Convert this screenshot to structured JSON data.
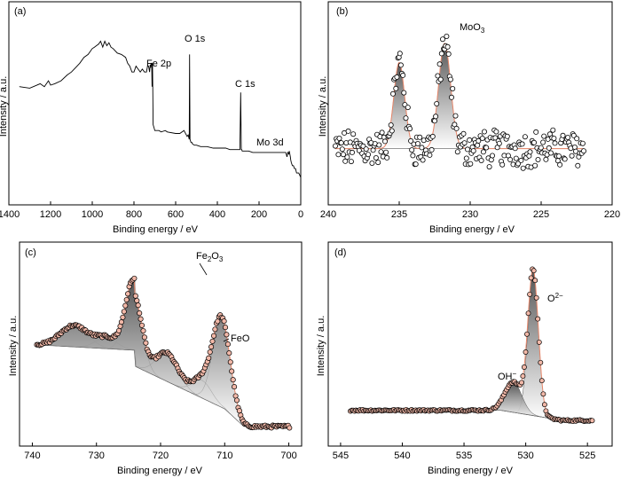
{
  "chart_data": [
    {
      "type": "line",
      "panel": "(a)",
      "xlabel": "Binding energy / eV",
      "ylabel": "Intensity / a.u.",
      "xlim": [
        1400,
        0
      ],
      "ylim": [
        0,
        100
      ],
      "xticks": [
        1400,
        1200,
        1000,
        800,
        600,
        400,
        200,
        0
      ],
      "x": [
        1350,
        1300,
        1250,
        1230,
        1210,
        1200,
        1180,
        1150,
        1120,
        1100,
        1080,
        1060,
        1040,
        1020,
        1000,
        990,
        980,
        970,
        960,
        950,
        940,
        930,
        920,
        910,
        900,
        880,
        860,
        840,
        830,
        820,
        810,
        800,
        790,
        780,
        770,
        760,
        750,
        740,
        735,
        730,
        725,
        722,
        720,
        718,
        715,
        713,
        711,
        710,
        708,
        706,
        704,
        700,
        690,
        680,
        670,
        650,
        640,
        600,
        580,
        560,
        545,
        540,
        535,
        533,
        531,
        529,
        527,
        525,
        523,
        520,
        510,
        500,
        480,
        460,
        450,
        420,
        400,
        380,
        360,
        340,
        320,
        300,
        292,
        288,
        285,
        283,
        281,
        279,
        275,
        270,
        250,
        230,
        200,
        180,
        160,
        150,
        140,
        120,
        100,
        95,
        80,
        75,
        72,
        66,
        62,
        58,
        55,
        50,
        48,
        45,
        40,
        35,
        30,
        25,
        20,
        10,
        0
      ],
      "y": [
        62,
        61,
        64,
        62,
        66,
        63,
        64,
        66,
        70,
        72,
        75,
        78,
        82,
        84,
        88,
        89,
        90,
        91,
        93,
        89,
        93,
        90,
        92,
        89,
        88,
        85,
        84,
        82,
        78,
        76,
        72,
        72,
        76,
        74,
        72,
        74,
        72,
        72,
        76,
        76,
        72,
        77,
        75,
        78,
        78,
        62,
        78,
        62,
        36,
        35,
        34,
        32,
        32,
        32,
        31,
        32,
        31,
        30,
        30,
        32,
        28,
        29,
        26,
        84,
        26,
        25,
        24,
        24,
        24,
        23,
        22,
        22,
        21,
        21,
        21,
        20,
        20,
        20,
        20,
        19,
        19,
        19,
        19,
        58,
        19,
        19,
        18,
        18,
        18,
        18,
        18,
        17,
        17,
        17,
        17,
        17,
        17,
        17,
        17,
        17,
        17,
        17,
        17,
        14,
        17,
        16,
        18,
        14,
        12,
        10,
        8,
        8,
        6,
        6,
        3,
        3,
        0
      ],
      "annotations": [
        "Fe 2p",
        "O 1s",
        "C 1s",
        "Mo 3d"
      ]
    },
    {
      "type": "scatter",
      "panel": "(b)",
      "xlabel": "Binding energy / eV",
      "ylabel": "Intensity / a.u.",
      "xlim": [
        240,
        220
      ],
      "ylim": [
        0,
        100
      ],
      "xticks": [
        240,
        235,
        230,
        225,
        220
      ],
      "peaks": [
        {
          "center": 235.0,
          "height": 54,
          "fwhm": 0.9
        },
        {
          "center": 231.8,
          "height": 66,
          "fwhm": 1.0
        }
      ],
      "baseline": 18,
      "annotations": [
        "MoO3"
      ]
    },
    {
      "type": "scatter",
      "panel": "(c)",
      "xlabel": "Binding energy / eV",
      "ylabel": "Intensity / a.u.",
      "xlim": [
        742,
        698
      ],
      "ylim": [
        0,
        100
      ],
      "xticks": [
        740,
        730,
        720,
        710,
        700
      ],
      "annotations": [
        "Fe2O3",
        "FeO"
      ]
    },
    {
      "type": "scatter",
      "panel": "(d)",
      "xlabel": "Binding energy / eV",
      "ylabel": "Intensity / a.u.",
      "xlim": [
        546,
        523
      ],
      "ylim": [
        0,
        100
      ],
      "xticks": [
        545,
        540,
        535,
        530,
        525
      ],
      "peaks": [
        {
          "center": 529.4,
          "height": 86,
          "fwhm": 1.0
        },
        {
          "center": 531.0,
          "height": 18,
          "fwhm": 1.6
        }
      ],
      "annotations": [
        "OH−",
        "O2−"
      ]
    }
  ],
  "labels": {
    "a": {
      "panel": "(a)",
      "xlabel": "Binding energy / eV",
      "ylabel": "Intensity / a.u.",
      "fe2p": "Fe 2p",
      "o1s": "O 1s",
      "c1s": "C 1s",
      "mo3d": "Mo 3d"
    },
    "b": {
      "panel": "(b)",
      "xlabel": "Binding energy / eV",
      "ylabel": "Intensity / a.u.",
      "moo3_main": "MoO",
      "moo3_sub": "3"
    },
    "c": {
      "panel": "(c)",
      "xlabel": "Binding energy / eV",
      "ylabel": "Intensity / a.u.",
      "fe2o3_a": "Fe",
      "fe2o3_sub": "2",
      "fe2o3_b": "O",
      "fe2o3_sub2": "3",
      "feo": "FeO"
    },
    "d": {
      "panel": "(d)",
      "xlabel": "Binding energy / eV",
      "ylabel": "Intensity / a.u.",
      "oh_main": "OH",
      "oh_sup": "−",
      "o2_main": "O",
      "o2_sup": "2−"
    }
  },
  "colors": {
    "fit_line": "#e8876a",
    "data_marker": "#000000",
    "peak_fill": "#777777",
    "marker_fill_c": "#f2b8a8"
  }
}
